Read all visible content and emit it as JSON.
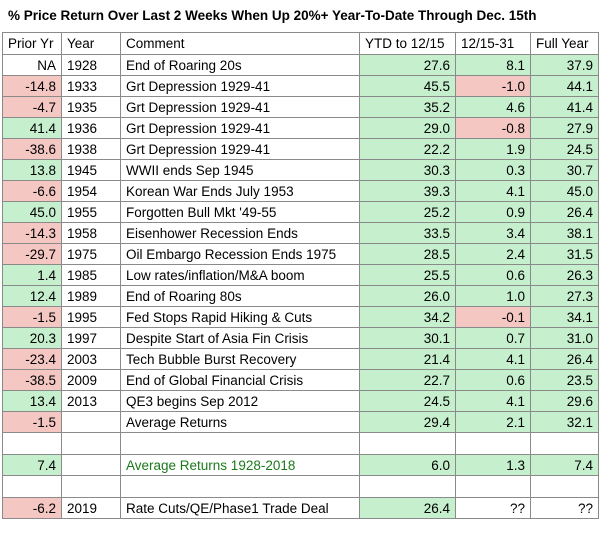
{
  "title": "% Price Return Over Last 2 Weeks When Up 20%+ Year-To-Date Through Dec. 15th",
  "headers": [
    "Prior Yr",
    "Year",
    "Comment",
    "YTD to 12/15",
    "12/15-31",
    "Full Year"
  ],
  "colors": {
    "positive": "#c6efce",
    "negative": "#f4c7c3"
  },
  "rows": [
    {
      "prior": "NA",
      "year": "1928",
      "comment": "End of Roaring 20s",
      "ytd": "27.6",
      "dec": "8.1",
      "full": "37.9"
    },
    {
      "prior": "-14.8",
      "year": "1933",
      "comment": "Grt Depression 1929-41",
      "ytd": "45.5",
      "dec": "-1.0",
      "full": "44.1"
    },
    {
      "prior": "-4.7",
      "year": "1935",
      "comment": "Grt Depression 1929-41",
      "ytd": "35.2",
      "dec": "4.6",
      "full": "41.4"
    },
    {
      "prior": "41.4",
      "year": "1936",
      "comment": "Grt Depression 1929-41",
      "ytd": "29.0",
      "dec": "-0.8",
      "full": "27.9"
    },
    {
      "prior": "-38.6",
      "year": "1938",
      "comment": "Grt Depression 1929-41",
      "ytd": "22.2",
      "dec": "1.9",
      "full": "24.5"
    },
    {
      "prior": "13.8",
      "year": "1945",
      "comment": "WWII ends Sep 1945",
      "ytd": "30.3",
      "dec": "0.3",
      "full": "30.7"
    },
    {
      "prior": "-6.6",
      "year": "1954",
      "comment": "Korean War Ends July 1953",
      "ytd": "39.3",
      "dec": "4.1",
      "full": "45.0"
    },
    {
      "prior": "45.0",
      "year": "1955",
      "comment": "Forgotten Bull Mkt '49-55",
      "ytd": "25.2",
      "dec": "0.9",
      "full": "26.4"
    },
    {
      "prior": "-14.3",
      "year": "1958",
      "comment": "Eisenhower Recession Ends",
      "ytd": "33.5",
      "dec": "3.4",
      "full": "38.1"
    },
    {
      "prior": "-29.7",
      "year": "1975",
      "comment": "Oil Embargo Recession Ends 1975",
      "ytd": "28.5",
      "dec": "2.4",
      "full": "31.5"
    },
    {
      "prior": "1.4",
      "year": "1985",
      "comment": "Low rates/inflation/M&A boom",
      "ytd": "25.5",
      "dec": "0.6",
      "full": "26.3"
    },
    {
      "prior": "12.4",
      "year": "1989",
      "comment": "End of Roaring 80s",
      "ytd": "26.0",
      "dec": "1.0",
      "full": "27.3"
    },
    {
      "prior": "-1.5",
      "year": "1995",
      "comment": "Fed Stops Rapid Hiking & Cuts",
      "ytd": "34.2",
      "dec": "-0.1",
      "full": "34.1"
    },
    {
      "prior": "20.3",
      "year": "1997",
      "comment": "Despite Start of Asia Fin Crisis",
      "ytd": "30.1",
      "dec": "0.7",
      "full": "31.0"
    },
    {
      "prior": "-23.4",
      "year": "2003",
      "comment": "Tech Bubble Burst Recovery",
      "ytd": "21.4",
      "dec": "4.1",
      "full": "26.4"
    },
    {
      "prior": "-38.5",
      "year": "2009",
      "comment": "End of Global Financial Crisis",
      "ytd": "22.7",
      "dec": "0.6",
      "full": "23.5"
    },
    {
      "prior": "13.4",
      "year": "2013",
      "comment": "QE3 begins Sep 2012",
      "ytd": "24.5",
      "dec": "4.1",
      "full": "29.6"
    }
  ],
  "average": {
    "prior": "-1.5",
    "year": "",
    "comment": "Average Returns",
    "ytd": "29.4",
    "dec": "2.1",
    "full": "32.1"
  },
  "average_all": {
    "prior": "7.4",
    "year": "",
    "comment": "Average Returns 1928-2018",
    "ytd": "6.0",
    "dec": "1.3",
    "full": "7.4"
  },
  "current": {
    "prior": "-6.2",
    "year": "2019",
    "comment": "Rate Cuts/QE/Phase1 Trade Deal",
    "ytd": "26.4",
    "dec": "??",
    "full": "??"
  }
}
